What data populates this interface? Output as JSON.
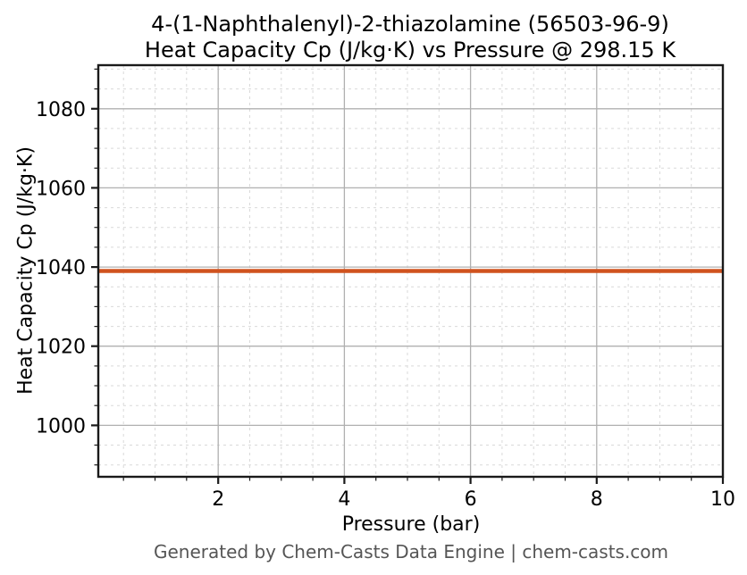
{
  "figure": {
    "title_line1": "4-(1-Naphthalenyl)-2-thiazolamine (56503-96-9)",
    "title_line2": "Heat Capacity Cp (J/kg·K) vs Pressure @ 298.15 K",
    "xlabel": "Pressure (bar)",
    "ylabel": "Heat Capacity Cp (J/kg·K)",
    "footer": "Generated by Chem-Casts Data Engine | chem-casts.com"
  },
  "colors": {
    "line": "#d0531f",
    "major_grid": "#b0b0b0",
    "minor_grid": "#d9d9d9",
    "spine": "#1a1a1a",
    "tick": "#1a1a1a",
    "tick_label": "#000000",
    "title_text": "#000000",
    "footer_text": "#555555",
    "background": "#ffffff"
  },
  "chart_data": {
    "type": "line",
    "title": "4-(1-Naphthalenyl)-2-thiazolamine (56503-96-9)\nHeat Capacity Cp (J/kg·K) vs Pressure @ 298.15 K",
    "xlabel": "Pressure (bar)",
    "ylabel": "Heat Capacity Cp (J/kg·K)",
    "xlim": [
      0.1,
      10
    ],
    "ylim": [
      987,
      1091
    ],
    "xticks": [
      2,
      4,
      6,
      8,
      10
    ],
    "yticks": [
      1000,
      1020,
      1040,
      1060,
      1080
    ],
    "x_minor_step": 0.5,
    "y_minor_step": 5,
    "grid": true,
    "minor_grid_style": "dashed",
    "legend": false,
    "series": [
      {
        "name": "Heat Capacity Cp",
        "x": [
          0.1,
          1,
          2,
          3,
          4,
          5,
          6,
          7,
          8,
          9,
          10
        ],
        "y": [
          1039,
          1039,
          1039,
          1039,
          1039,
          1039,
          1039,
          1039,
          1039,
          1039,
          1039
        ],
        "color": "#d0531f",
        "note": "Cp is constant at ~1039 J/kg·K over 0.1–10 bar at 298.15 K"
      }
    ]
  }
}
